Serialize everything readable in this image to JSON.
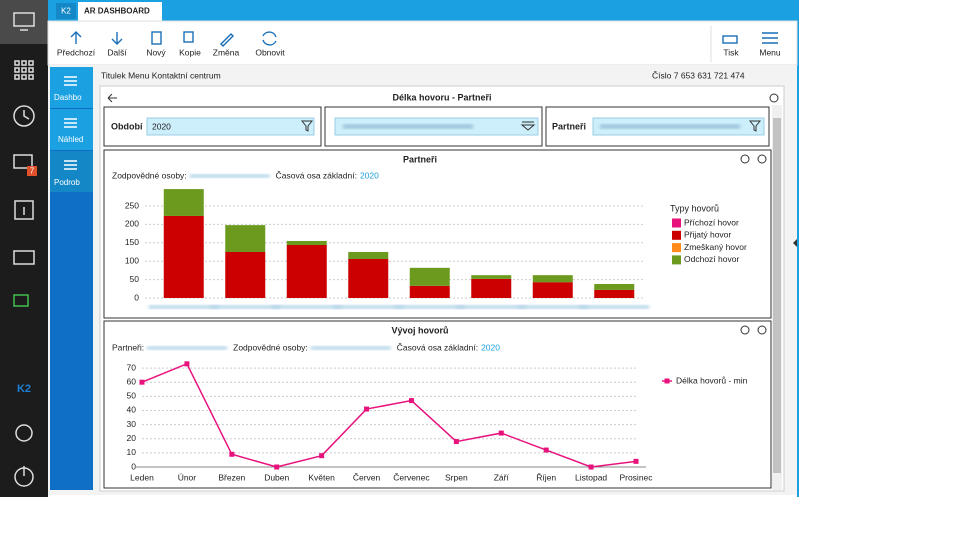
{
  "tabs": [
    "K2",
    "AR DASHBOARD"
  ],
  "sidebar": {
    "badge": "7",
    "logo": "K2"
  },
  "toolbar": {
    "left": [
      "Předchozí",
      "Další",
      "Nový",
      "Kopie",
      "Změna",
      "Obnovit"
    ],
    "right": [
      "Tisk",
      "Menu"
    ]
  },
  "nav": [
    "Dashbo",
    "Náhled",
    "Podrob"
  ],
  "header": {
    "title": "Titulek Menu Kontaktní centrum",
    "number": "Číslo 7 653 631 721 474"
  },
  "panel": {
    "title": "Délka hovoru - Partneři"
  },
  "filters": {
    "period_label": "Období",
    "period_value": "2020",
    "partners_label": "Partneři"
  },
  "chart_data": [
    {
      "type": "bar",
      "stacked": true,
      "title": "Partneři",
      "info": [
        {
          "label": "Zodpovědné osoby:"
        },
        {
          "label": "Časová osa základní:",
          "value": "2020"
        }
      ],
      "legend_title": "Typy hovorů",
      "legend": "right",
      "grid": true,
      "categories": [
        null,
        null,
        null,
        null,
        null,
        null,
        null,
        null
      ],
      "series": [
        {
          "name": "Příchozí hovor",
          "color": "#e8127d",
          "values": [
            0,
            0,
            0,
            0,
            0,
            0,
            0,
            0
          ]
        },
        {
          "name": "Přijatý hovor",
          "color": "#cc0000",
          "values": [
            223,
            125,
            144,
            106,
            33,
            52,
            43,
            22
          ]
        },
        {
          "name": "Zmeškaný hovor",
          "color": "#ff8c1a",
          "values": [
            0,
            0,
            0,
            0,
            0,
            0,
            0,
            0
          ]
        },
        {
          "name": "Odchozí hovor",
          "color": "#6b9a1e",
          "values": [
            73,
            73,
            11,
            19,
            49,
            10,
            19,
            16
          ]
        }
      ],
      "ylim": [
        0,
        300
      ],
      "yticks": [
        0,
        50,
        100,
        150,
        200,
        250
      ]
    },
    {
      "type": "line",
      "title": "Vývoj hovorů",
      "info": [
        {
          "label": "Partneři:"
        },
        {
          "label": "Zodpovědné osoby:"
        },
        {
          "label": "Časová osa základní:",
          "value": "2020"
        }
      ],
      "legend": "right",
      "grid": true,
      "categories": [
        "Leden",
        "Únor",
        "Březen",
        "Duben",
        "Květen",
        "Červen",
        "Červenec",
        "Srpen",
        "Září",
        "Říjen",
        "Listopad",
        "Prosinec"
      ],
      "series": [
        {
          "name": "Délka hovorů - min",
          "color": "#e8127d",
          "values": [
            60,
            73,
            9,
            0,
            8,
            41,
            47,
            18,
            24,
            12,
            0,
            4
          ]
        }
      ],
      "ylim": [
        0,
        75
      ],
      "yticks": [
        0,
        10,
        20,
        30,
        40,
        50,
        60,
        70
      ]
    }
  ]
}
